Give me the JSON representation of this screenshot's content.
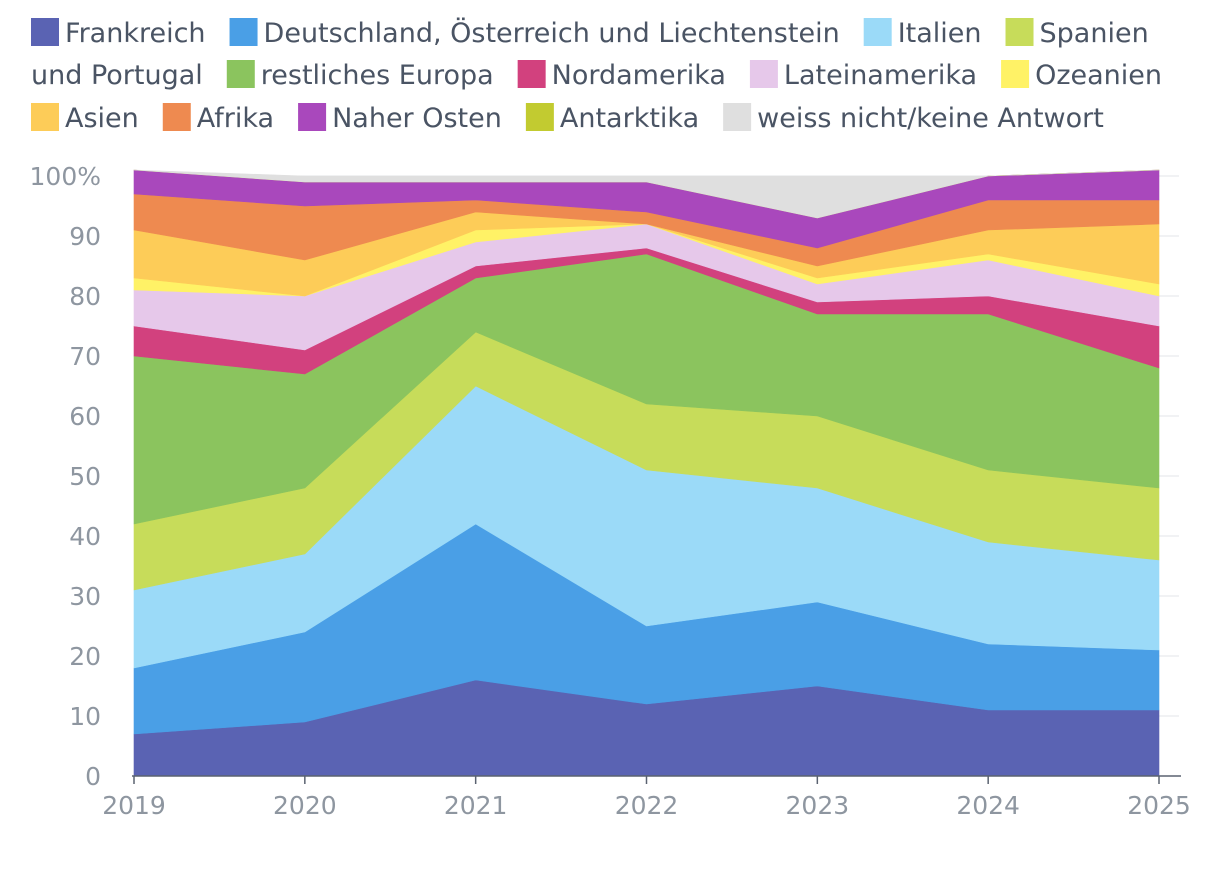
{
  "chart_data": {
    "type": "area",
    "stacked": true,
    "title": "",
    "xlabel": "",
    "ylabel": "",
    "ylim": [
      0,
      100
    ],
    "categories": [
      "2019",
      "2020",
      "2021",
      "2022",
      "2023",
      "2024",
      "2025"
    ],
    "y_ticks": [
      "0",
      "10",
      "20",
      "30",
      "40",
      "50",
      "60",
      "70",
      "80",
      "90",
      "100%"
    ],
    "grid": true,
    "legend_position": "top",
    "series": [
      {
        "name": "Frankreich",
        "color": "#5a63b3",
        "values": [
          7,
          9,
          16,
          12,
          15,
          11,
          11
        ]
      },
      {
        "name": "Deutschland, Österreich und Liechtenstein",
        "color": "#4a9fe6",
        "values": [
          11,
          15,
          26,
          13,
          14,
          11,
          10
        ]
      },
      {
        "name": "Italien",
        "color": "#9bdaf8",
        "values": [
          13,
          13,
          23,
          26,
          19,
          17,
          15
        ]
      },
      {
        "name": "Spanien und Portugal",
        "color": "#c7dc5a",
        "values": [
          11,
          11,
          9,
          11,
          12,
          12,
          12
        ]
      },
      {
        "name": "restliches Europa",
        "color": "#8bc45e",
        "values": [
          28,
          19,
          9,
          25,
          17,
          26,
          20
        ]
      },
      {
        "name": "Nordamerika",
        "color": "#d2417e",
        "values": [
          5,
          4,
          2,
          1,
          2,
          3,
          7
        ]
      },
      {
        "name": "Lateinamerika",
        "color": "#e6c8ea",
        "values": [
          6,
          9,
          4,
          4,
          3,
          6,
          5
        ]
      },
      {
        "name": "Ozeanien",
        "color": "#fff266",
        "values": [
          2,
          0,
          2,
          0,
          1,
          1,
          2
        ]
      },
      {
        "name": "Asien",
        "color": "#fdcc58",
        "values": [
          8,
          6,
          3,
          0,
          2,
          4,
          10
        ]
      },
      {
        "name": "Afrika",
        "color": "#ee8a50",
        "values": [
          6,
          9,
          2,
          2,
          3,
          5,
          4
        ]
      },
      {
        "name": "Naher Osten",
        "color": "#a948bc",
        "values": [
          4,
          4,
          3,
          5,
          5,
          4,
          5
        ]
      },
      {
        "name": "Antarktika",
        "color": "#c2cb30",
        "values": [
          0,
          0,
          0,
          0,
          0,
          0,
          0
        ]
      },
      {
        "name": "weiss nicht/keine Antwort",
        "color": "#dfdfdf",
        "values": [
          0,
          1,
          1,
          1,
          7,
          0,
          0
        ]
      }
    ],
    "legend_rows": [
      [
        {
          "series": 0,
          "label": "Frankreich"
        },
        {
          "series": 1,
          "label": "Deutschland, Österreich und Liechtenstein"
        },
        {
          "series": 2,
          "label": "Italien"
        },
        {
          "series": 3,
          "label": "Spanien"
        }
      ],
      [
        {
          "series": -1,
          "label": "und Portugal"
        },
        {
          "series": 4,
          "label": "restliches Europa"
        },
        {
          "series": 5,
          "label": "Nordamerika"
        },
        {
          "series": 6,
          "label": "Lateinamerika"
        },
        {
          "series": 7,
          "label": "Ozeanien"
        }
      ],
      [
        {
          "series": 8,
          "label": "Asien"
        },
        {
          "series": 9,
          "label": "Afrika"
        },
        {
          "series": 10,
          "label": "Naher Osten"
        },
        {
          "series": 11,
          "label": "Antarktika"
        },
        {
          "series": 12,
          "label": "weiss nicht/keine Antwort"
        }
      ]
    ]
  }
}
